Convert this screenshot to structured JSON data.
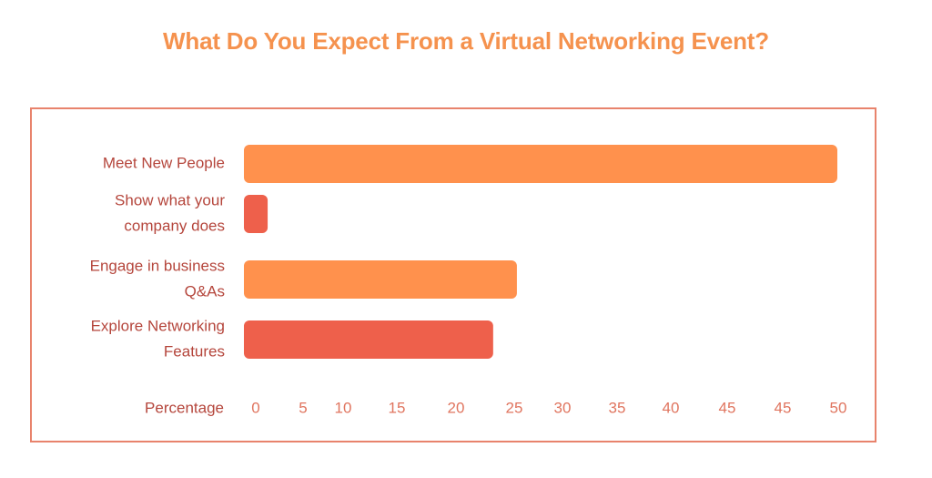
{
  "chart_data": {
    "type": "bar",
    "orientation": "horizontal",
    "title": "What Do You Expect From a Virtual Networking Event?",
    "xlabel": "Percentage",
    "categories": [
      [
        "Meet New People"
      ],
      [
        "Show what your",
        "company does"
      ],
      [
        "Engage in business",
        "Q&As"
      ],
      [
        "Explore Networking",
        "Features"
      ]
    ],
    "values": [
      50,
      2,
      23,
      21
    ],
    "tick_labels": [
      "0",
      "5",
      "10",
      "15",
      "20",
      "25",
      "30",
      "35",
      "40",
      "45",
      "45",
      "50"
    ],
    "xlim": [
      0,
      50
    ],
    "grid": false,
    "legend": "none"
  },
  "colors": {
    "bars": [
      "#FF914D",
      "#EE604B",
      "#FF914D",
      "#EE604B"
    ],
    "title": "#F5924E",
    "frame": "#E8836C",
    "text": "#B5463C",
    "tick": "#E0755F"
  }
}
